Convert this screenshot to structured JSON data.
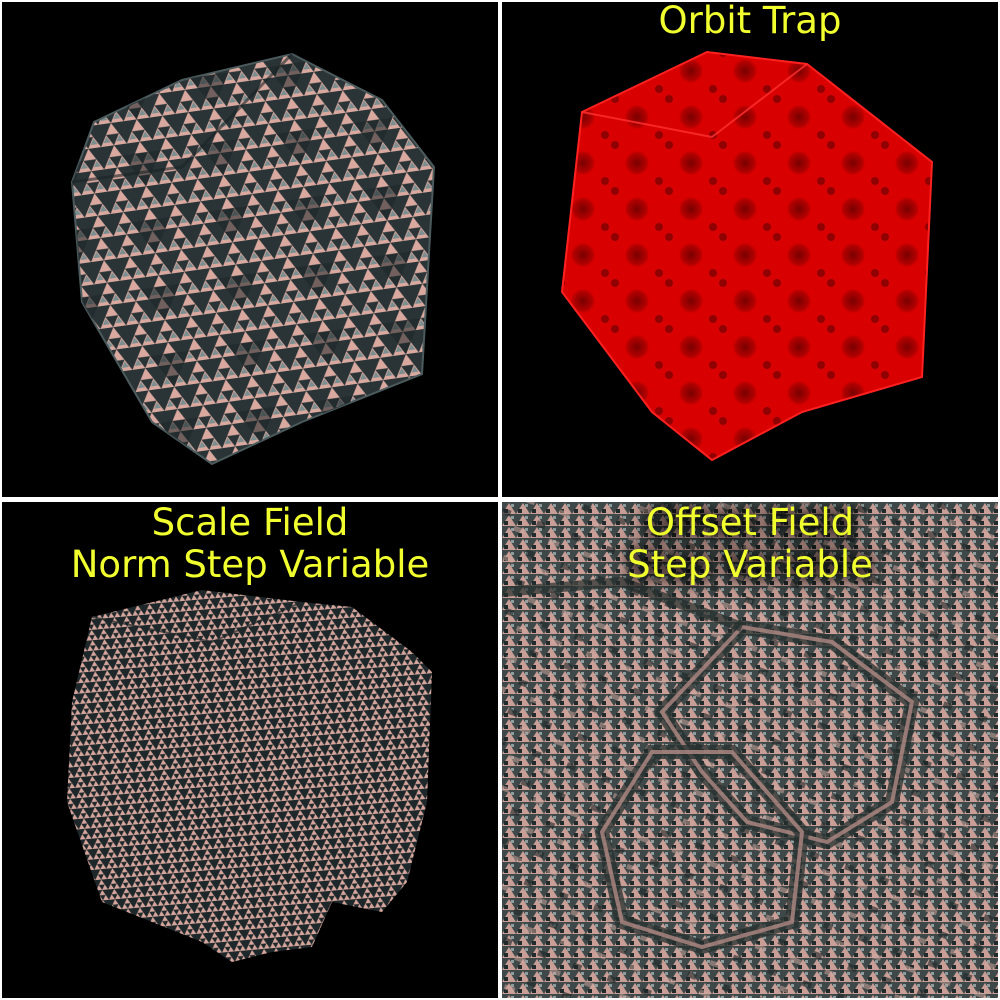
{
  "panels": [
    {
      "id": "panel-1",
      "caption_lines": [],
      "fractal_color": "#d9a9a0",
      "shadow_color": "#1b2426"
    },
    {
      "id": "panel-2",
      "caption_lines": [
        "Orbit Trap"
      ],
      "fractal_color": "#e00000",
      "shadow_color": "#5a0000"
    },
    {
      "id": "panel-3",
      "caption_lines": [
        "Scale Field",
        "Norm Step Variable"
      ],
      "fractal_color": "#d4a59c",
      "shadow_color": "#1b2426"
    },
    {
      "id": "panel-4",
      "caption_lines": [
        "Offset Field",
        "Step Variable"
      ],
      "fractal_color": "#d4a59c",
      "shadow_color": "#22302f"
    }
  ],
  "caption_color": "#f2ff2e",
  "background_color": "#000000"
}
